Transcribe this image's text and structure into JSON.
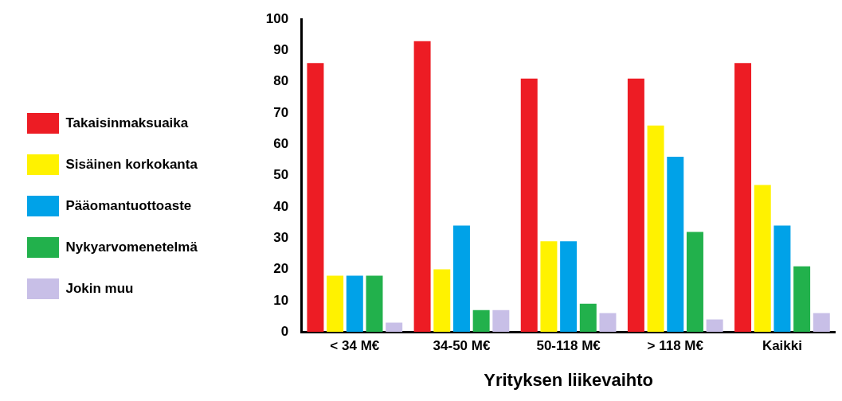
{
  "chart_data": {
    "type": "bar",
    "xlabel": "Yrityksen liikevaihto",
    "categories": [
      "< 34 M€",
      "34-50 M€",
      "50-118 M€",
      "> 118 M€",
      "Kaikki"
    ],
    "series": [
      {
        "name": "Takaisinmaksuaika",
        "color": "#ed1c24",
        "values": [
          86,
          93,
          81,
          81,
          86
        ]
      },
      {
        "name": "Sisäinen korkokanta",
        "color": "#fff200",
        "values": [
          18,
          20,
          29,
          66,
          47
        ]
      },
      {
        "name": "Pääomantuottoaste",
        "color": "#00a2e8",
        "values": [
          18,
          34,
          29,
          56,
          34
        ]
      },
      {
        "name": "Nykyarvomenetelmä",
        "color": "#22b14c",
        "values": [
          18,
          7,
          9,
          32,
          21
        ]
      },
      {
        "name": "Jokin muu",
        "color": "#c8bfe7",
        "values": [
          3,
          7,
          6,
          4,
          6
        ]
      }
    ],
    "ylim": [
      0,
      100
    ],
    "yticks": [
      0,
      10,
      20,
      30,
      40,
      50,
      60,
      70,
      80,
      90,
      100
    ],
    "grid": false,
    "legend": "left"
  }
}
